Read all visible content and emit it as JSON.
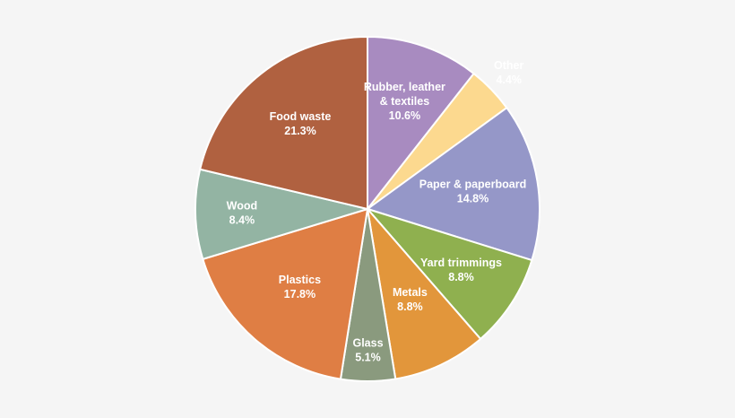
{
  "chart_data": {
    "type": "pie",
    "start_angle_deg": 0,
    "direction": "clockwise",
    "slices": [
      {
        "label": [
          "Rubber, leather",
          "& textiles"
        ],
        "value": 10.6,
        "value_text": "10.6%",
        "color": "#a88bc0",
        "label_color": "#ffffff"
      },
      {
        "label": [
          "Other"
        ],
        "value": 4.4,
        "value_text": "4.4%",
        "color": "#fcd98f",
        "label_color": "#333333"
      },
      {
        "label": [
          "Paper & paperboard"
        ],
        "value": 14.8,
        "value_text": "14.8%",
        "color": "#9597c8",
        "label_color": "#ffffff"
      },
      {
        "label": [
          "Yard trimmings"
        ],
        "value": 8.8,
        "value_text": "8.8%",
        "color": "#8fb04f",
        "label_color": "#ffffff"
      },
      {
        "label": [
          "Metals"
        ],
        "value": 8.8,
        "value_text": "8.8%",
        "color": "#e2963b",
        "label_color": "#ffffff"
      },
      {
        "label": [
          "Glass"
        ],
        "value": 5.1,
        "value_text": "5.1%",
        "color": "#8a9a7e",
        "label_color": "#ffffff"
      },
      {
        "label": [
          "Plastics"
        ],
        "value": 17.8,
        "value_text": "17.8%",
        "color": "#df7e44",
        "label_color": "#ffffff"
      },
      {
        "label": [
          "Wood"
        ],
        "value": 8.4,
        "value_text": "8.4%",
        "color": "#93b4a3",
        "label_color": "#ffffff"
      },
      {
        "label": [
          "Food waste"
        ],
        "value": 21.3,
        "value_text": "21.3%",
        "color": "#b06140",
        "label_color": "#ffffff"
      }
    ]
  }
}
